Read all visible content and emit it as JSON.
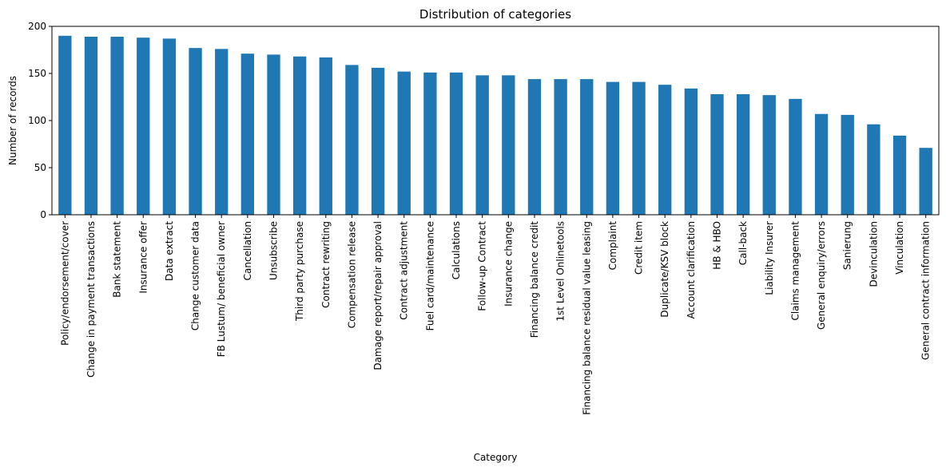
{
  "chart_data": {
    "type": "bar",
    "title": "Distribution of categories",
    "xlabel": "Category",
    "ylabel": "Number of records",
    "ylim": [
      0,
      200
    ],
    "yticks": [
      0,
      50,
      100,
      150,
      200
    ],
    "grid": false,
    "legend": "none",
    "bar_color": "#1f77b4",
    "categories": [
      "Policy/endorsement/cover",
      "Change in payment transactions",
      "Bank statement",
      "Insurance offer",
      "Data extract",
      "Change customer data",
      "FB Lustum/ beneficial owner",
      "Cancellation",
      "Unsubscribe",
      "Third party purchase",
      "Contract rewriting",
      "Compensation release",
      "Damage report/repair approval",
      "Contract adjustment",
      "Fuel card/maintenance",
      "Calculations",
      "Follow-up Contract",
      "Insurance change",
      "Financing balance credit",
      "1st Level Onlinetools",
      "Financing balance residual value leasing",
      "Complaint",
      "Credit item",
      "Duplicate/KSV block",
      "Account clarification",
      "HB & HBO",
      "Call-back",
      "Liability Insurer",
      "Claims management",
      "General enquiry/errors",
      "Sanierung",
      "Devinculation",
      "Vinculation",
      "General contract information"
    ],
    "values": [
      190,
      189,
      189,
      188,
      187,
      177,
      176,
      171,
      170,
      168,
      167,
      159,
      156,
      152,
      151,
      151,
      148,
      148,
      144,
      144,
      144,
      141,
      141,
      138,
      134,
      128,
      128,
      127,
      123,
      107,
      106,
      96,
      84,
      71
    ]
  }
}
